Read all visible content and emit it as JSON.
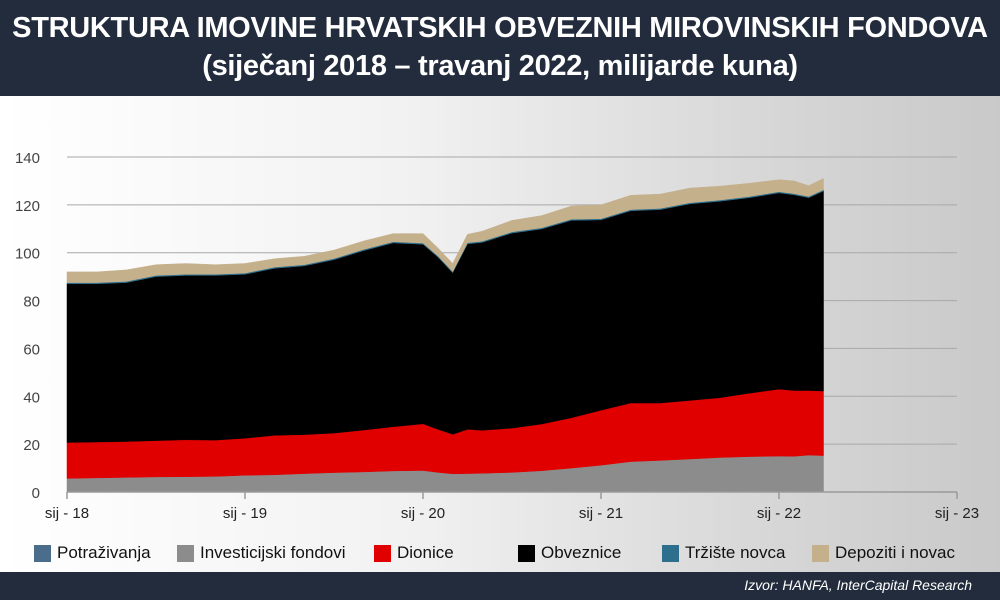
{
  "header": {
    "title": "STRUKTURA IMOVINE HRVATSKIH OBVEZNIH MIROVINSKIH FONDOVA",
    "subtitle": "(siječanj 2018 – travanj 2022, milijarde kuna)"
  },
  "footer": {
    "source": "Izvor: HANFA, InterCapital Research"
  },
  "colors": {
    "header_bg": "#222c3c",
    "potrazivanja": "#4a6d8c",
    "investicijski": "#8c8c8c",
    "dionice": "#e00000",
    "obveznice": "#000000",
    "trziste": "#2e6f8e",
    "depoziti": "#c5b08c"
  },
  "chart_data": {
    "type": "area",
    "stacked": true,
    "x_tick_labels": [
      "sij - 18",
      "sij - 19",
      "sij - 20",
      "sij - 21",
      "sij - 22",
      "sij - 23"
    ],
    "x_range": [
      "2018-01",
      "2023-01"
    ],
    "ylim": [
      0,
      140
    ],
    "y_ticks": [
      0,
      20,
      40,
      60,
      80,
      100,
      120,
      140
    ],
    "grid": "horizontal",
    "legend_position": "bottom",
    "x": [
      "2018-01",
      "2018-03",
      "2018-05",
      "2018-07",
      "2018-09",
      "2018-11",
      "2019-01",
      "2019-03",
      "2019-05",
      "2019-07",
      "2019-09",
      "2019-11",
      "2020-01",
      "2020-02",
      "2020-03",
      "2020-04",
      "2020-05",
      "2020-07",
      "2020-09",
      "2020-11",
      "2021-01",
      "2021-03",
      "2021-05",
      "2021-07",
      "2021-09",
      "2021-11",
      "2022-01",
      "2022-02",
      "2022-03",
      "2022-04"
    ],
    "series": [
      {
        "name": "Potraživanja",
        "color": "#4a6d8c",
        "values": [
          0.2,
          0.2,
          0.2,
          0.2,
          0.2,
          0.2,
          0.2,
          0.2,
          0.2,
          0.2,
          0.2,
          0.2,
          0.2,
          0.2,
          0.2,
          0.2,
          0.2,
          0.2,
          0.2,
          0.2,
          0.2,
          0.2,
          0.2,
          0.2,
          0.2,
          0.2,
          0.2,
          0.2,
          0.2,
          0.2
        ]
      },
      {
        "name": "Investicijski fondovi",
        "color": "#8c8c8c",
        "values": [
          5.5,
          5.7,
          5.9,
          6.1,
          6.2,
          6.3,
          6.8,
          7.0,
          7.5,
          7.9,
          8.2,
          8.6,
          8.8,
          8.0,
          7.4,
          7.5,
          7.6,
          8.0,
          8.7,
          9.8,
          11.0,
          12.5,
          13.0,
          13.6,
          14.2,
          14.6,
          14.8,
          14.7,
          15.2,
          15.0
        ]
      },
      {
        "name": "Dionice",
        "color": "#e00000",
        "values": [
          15.0,
          15.0,
          15.0,
          15.2,
          15.4,
          15.2,
          15.5,
          16.5,
          16.3,
          16.5,
          17.5,
          18.5,
          19.5,
          18.0,
          16.5,
          18.5,
          18.0,
          18.5,
          19.5,
          21.0,
          23.0,
          24.5,
          24.0,
          24.5,
          25.0,
          26.5,
          28.0,
          27.5,
          27.0,
          27.0
        ]
      },
      {
        "name": "Obveznice",
        "color": "#000000",
        "values": [
          66.3,
          66.1,
          66.4,
          68.5,
          68.7,
          68.8,
          68.5,
          69.8,
          70.5,
          72.5,
          75.0,
          76.8,
          75.0,
          72.0,
          67.5,
          77.5,
          78.5,
          81.5,
          81.5,
          82.5,
          79.5,
          80.3,
          80.8,
          82.1,
          82.1,
          81.7,
          82.0,
          81.8,
          80.6,
          83.6
        ]
      },
      {
        "name": "Tržište novca",
        "color": "#2e6f8e",
        "values": [
          0.5,
          0.5,
          0.5,
          0.5,
          0.5,
          0.5,
          0.5,
          0.5,
          0.5,
          0.5,
          0.5,
          0.5,
          0.5,
          0.5,
          0.5,
          0.5,
          0.5,
          0.5,
          0.5,
          0.5,
          0.5,
          0.5,
          0.5,
          0.5,
          0.5,
          0.5,
          0.5,
          0.5,
          0.5,
          0.5
        ]
      },
      {
        "name": "Depoziti i novac",
        "color": "#c5b08c",
        "values": [
          4.5,
          4.5,
          4.8,
          4.5,
          4.5,
          4.0,
          4.0,
          3.5,
          3.5,
          3.5,
          3.5,
          3.4,
          4.0,
          3.3,
          3.4,
          3.5,
          4.2,
          4.8,
          5.1,
          5.5,
          5.8,
          6.0,
          6.0,
          6.1,
          5.8,
          5.5,
          5.0,
          5.3,
          4.5,
          4.7
        ]
      }
    ]
  }
}
